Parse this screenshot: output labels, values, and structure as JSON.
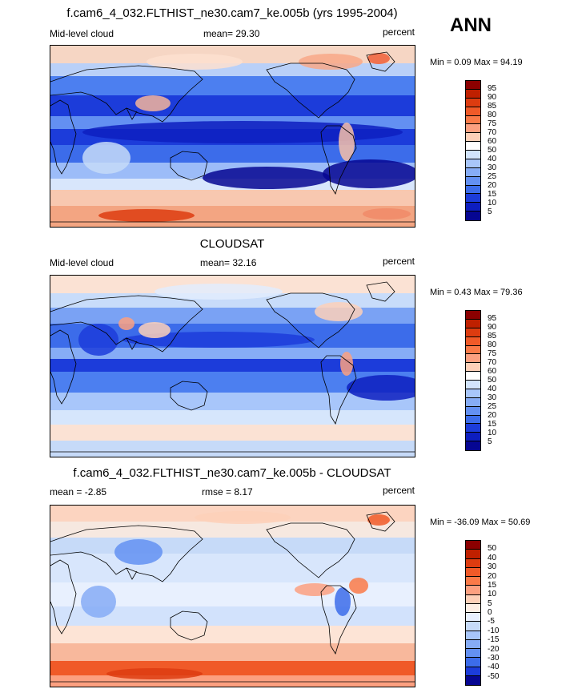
{
  "season": "ANN",
  "panels": [
    {
      "title": "f.cam6_4_032.FLTHIST_ne30.cam7_ke.005b (yrs 1995-2004)",
      "left_label": "Mid-level cloud",
      "mid_label": "mean=  29.30",
      "right_label": "percent",
      "minmax": "Min =   0.09 Max =  94.19",
      "kind": "abs"
    },
    {
      "title": "CLOUDSAT",
      "left_label": "Mid-level cloud",
      "mid_label": "mean=  32.16",
      "right_label": "percent",
      "minmax": "Min =   0.43 Max =  79.36",
      "kind": "abs2"
    },
    {
      "title": "f.cam6_4_032.FLTHIST_ne30.cam7_ke.005b - CLOUDSAT",
      "left_label": "mean =  -2.85",
      "mid_label": "rmse =   8.17",
      "right_label": "percent",
      "minmax": "Min = -36.09 Max =  50.69",
      "kind": "diff"
    }
  ],
  "colorbars": {
    "abs": {
      "labels": [
        "95",
        "90",
        "85",
        "80",
        "75",
        "70",
        "60",
        "50",
        "40",
        "30",
        "25",
        "20",
        "15",
        "10",
        "5"
      ],
      "colors": [
        "#8b0000",
        "#bf2000",
        "#dd3c10",
        "#f05a28",
        "#fa7a48",
        "#fca080",
        "#fdd0b8",
        "#ffffff",
        "#d2e4fc",
        "#a8c6fa",
        "#86acf6",
        "#6390f2",
        "#3c6cea",
        "#1c3cda",
        "#0d1ec0",
        "#060692"
      ]
    },
    "diff": {
      "labels": [
        "50",
        "40",
        "30",
        "20",
        "15",
        "10",
        "5",
        "0",
        "-5",
        "-10",
        "-15",
        "-20",
        "-30",
        "-40",
        "-50"
      ],
      "colors": [
        "#8b0000",
        "#bf2000",
        "#dd3c10",
        "#f05a28",
        "#fa7a48",
        "#fca080",
        "#fdd0b8",
        "#fdeee4",
        "#e8f0fe",
        "#c6daf8",
        "#a8c6fa",
        "#86acf6",
        "#6390f2",
        "#3c6cea",
        "#1c3cda",
        "#060692"
      ]
    }
  },
  "chart_data": [
    {
      "type": "heatmap",
      "title": "f.cam6_4_032.FLTHIST_ne30.cam7_ke.005b (yrs 1995-2004)",
      "variable": "Mid-level cloud",
      "units": "percent",
      "mean": 29.3,
      "min": 0.09,
      "max": 94.19,
      "zonal_profile": {
        "lat": [
          80,
          60,
          40,
          20,
          0,
          -20,
          -40,
          -60,
          -80
        ],
        "approx_value": [
          70,
          55,
          35,
          15,
          20,
          15,
          30,
          75,
          55
        ]
      }
    },
    {
      "type": "heatmap",
      "title": "CLOUDSAT",
      "variable": "Mid-level cloud",
      "units": "percent",
      "mean": 32.16,
      "min": 0.43,
      "max": 79.36,
      "zonal_profile": {
        "lat": [
          80,
          60,
          40,
          20,
          0,
          -20,
          -40,
          -60,
          -80
        ],
        "approx_value": [
          55,
          50,
          35,
          18,
          25,
          15,
          35,
          55,
          45
        ]
      }
    },
    {
      "type": "heatmap",
      "title": "f.cam6_4_032.FLTHIST_ne30.cam7_ke.005b - CLOUDSAT",
      "units": "percent",
      "mean": -2.85,
      "rmse": 8.17,
      "min": -36.09,
      "max": 50.69,
      "zonal_profile": {
        "lat": [
          80,
          60,
          40,
          20,
          0,
          -20,
          -40,
          -60,
          -80
        ],
        "approx_value": [
          10,
          5,
          0,
          -5,
          -5,
          0,
          -5,
          20,
          10
        ]
      }
    }
  ]
}
